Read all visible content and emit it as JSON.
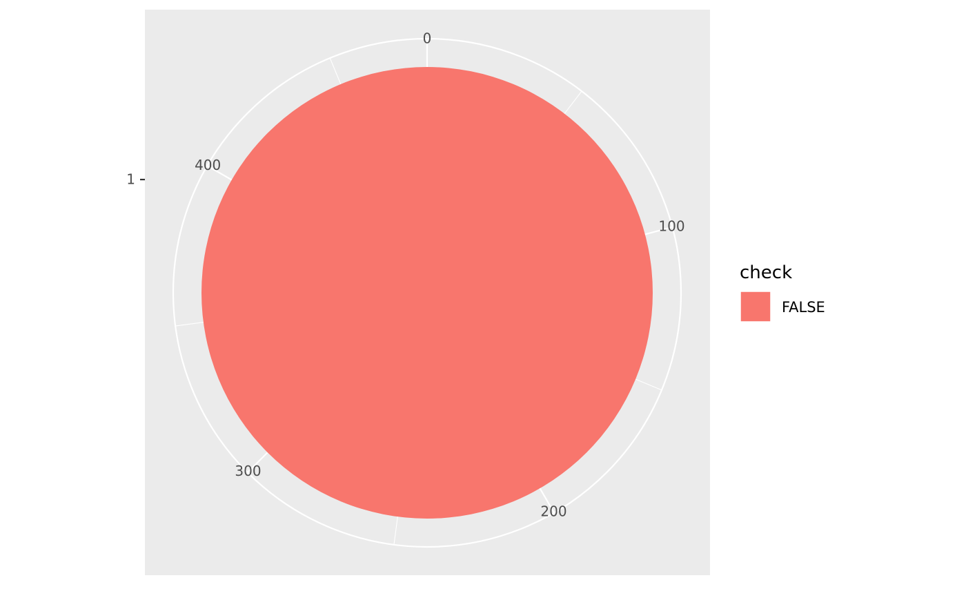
{
  "chart_data": {
    "type": "pie",
    "coord": "polar",
    "title": "",
    "xlabel": "",
    "ylabel": "",
    "x_categories": [
      "1"
    ],
    "theta_range": [
      0,
      480
    ],
    "theta_breaks": [
      0,
      100,
      200,
      300,
      400
    ],
    "theta_tick_labels": [
      "0",
      "100",
      "200",
      "300",
      "400"
    ],
    "slices": [
      {
        "label": "FALSE",
        "x": "1",
        "value": 480,
        "color": "#F8766D"
      }
    ],
    "legend": {
      "title": "check",
      "placement": "right",
      "entries": [
        {
          "label": "FALSE",
          "color": "#F8766D"
        }
      ]
    },
    "panel_background": "#EBEBEB",
    "grid": true,
    "grid_color": "#FFFFFF"
  }
}
